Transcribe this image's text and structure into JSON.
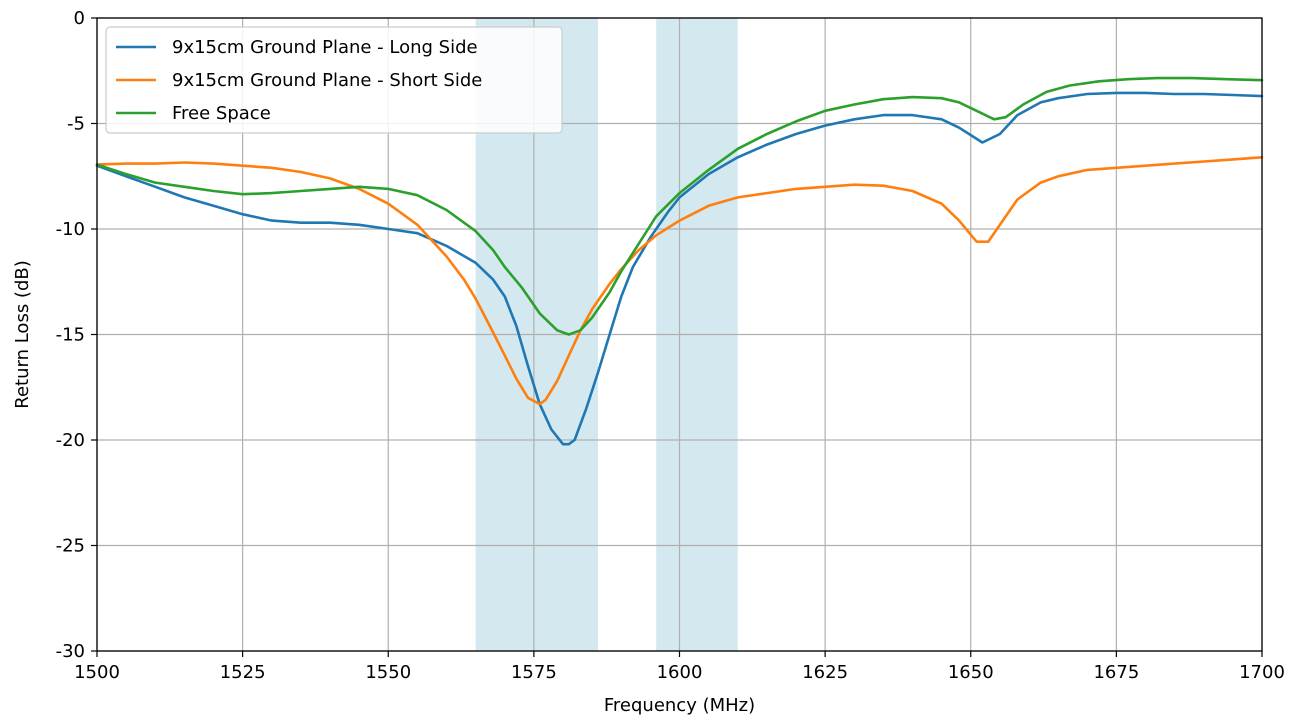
{
  "chart_data": {
    "type": "line",
    "title": "",
    "xlabel": "Frequency (MHz)",
    "ylabel": "Return Loss (dB)",
    "xlim": [
      1500,
      1700
    ],
    "ylim": [
      -30,
      0
    ],
    "x_ticks": [
      1500,
      1525,
      1550,
      1575,
      1600,
      1625,
      1650,
      1675,
      1700
    ],
    "y_ticks": [
      0,
      -5,
      -10,
      -15,
      -20,
      -25,
      -30
    ],
    "grid": true,
    "legend_position": "top-left",
    "shaded_bands": [
      {
        "x_start": 1565,
        "x_end": 1586,
        "color": "#d3e8ef"
      },
      {
        "x_start": 1596,
        "x_end": 1610,
        "color": "#d3e8ef"
      }
    ],
    "series": [
      {
        "name": "9x15cm Ground Plane - Long Side",
        "color": "#1f77b4",
        "points": [
          [
            1500,
            -7.0
          ],
          [
            1505,
            -7.5
          ],
          [
            1510,
            -8.0
          ],
          [
            1515,
            -8.5
          ],
          [
            1520,
            -8.9
          ],
          [
            1525,
            -9.3
          ],
          [
            1530,
            -9.6
          ],
          [
            1535,
            -9.7
          ],
          [
            1540,
            -9.7
          ],
          [
            1545,
            -9.8
          ],
          [
            1550,
            -10.0
          ],
          [
            1555,
            -10.2
          ],
          [
            1560,
            -10.8
          ],
          [
            1565,
            -11.6
          ],
          [
            1568,
            -12.4
          ],
          [
            1570,
            -13.2
          ],
          [
            1572,
            -14.6
          ],
          [
            1574,
            -16.5
          ],
          [
            1576,
            -18.3
          ],
          [
            1578,
            -19.5
          ],
          [
            1580,
            -20.2
          ],
          [
            1581,
            -20.2
          ],
          [
            1582,
            -20.0
          ],
          [
            1584,
            -18.5
          ],
          [
            1586,
            -16.8
          ],
          [
            1588,
            -15.0
          ],
          [
            1590,
            -13.2
          ],
          [
            1592,
            -11.8
          ],
          [
            1595,
            -10.4
          ],
          [
            1598,
            -9.2
          ],
          [
            1600,
            -8.5
          ],
          [
            1605,
            -7.4
          ],
          [
            1610,
            -6.6
          ],
          [
            1615,
            -6.0
          ],
          [
            1620,
            -5.5
          ],
          [
            1625,
            -5.1
          ],
          [
            1630,
            -4.8
          ],
          [
            1635,
            -4.6
          ],
          [
            1640,
            -4.6
          ],
          [
            1645,
            -4.8
          ],
          [
            1648,
            -5.2
          ],
          [
            1652,
            -5.9
          ],
          [
            1655,
            -5.5
          ],
          [
            1658,
            -4.6
          ],
          [
            1662,
            -4.0
          ],
          [
            1665,
            -3.8
          ],
          [
            1670,
            -3.6
          ],
          [
            1675,
            -3.55
          ],
          [
            1680,
            -3.55
          ],
          [
            1685,
            -3.6
          ],
          [
            1690,
            -3.6
          ],
          [
            1695,
            -3.65
          ],
          [
            1700,
            -3.7
          ]
        ]
      },
      {
        "name": "9x15cm Ground Plane - Short Side",
        "color": "#ff7f0e",
        "points": [
          [
            1500,
            -6.95
          ],
          [
            1505,
            -6.9
          ],
          [
            1510,
            -6.9
          ],
          [
            1515,
            -6.85
          ],
          [
            1520,
            -6.9
          ],
          [
            1525,
            -7.0
          ],
          [
            1530,
            -7.1
          ],
          [
            1535,
            -7.3
          ],
          [
            1540,
            -7.6
          ],
          [
            1545,
            -8.1
          ],
          [
            1550,
            -8.8
          ],
          [
            1555,
            -9.8
          ],
          [
            1560,
            -11.3
          ],
          [
            1563,
            -12.4
          ],
          [
            1565,
            -13.3
          ],
          [
            1568,
            -14.9
          ],
          [
            1570,
            -16.0
          ],
          [
            1572,
            -17.1
          ],
          [
            1574,
            -18.0
          ],
          [
            1576,
            -18.3
          ],
          [
            1577,
            -18.1
          ],
          [
            1579,
            -17.2
          ],
          [
            1581,
            -16.0
          ],
          [
            1583,
            -14.8
          ],
          [
            1585,
            -13.8
          ],
          [
            1588,
            -12.6
          ],
          [
            1590,
            -11.9
          ],
          [
            1593,
            -11.0
          ],
          [
            1596,
            -10.3
          ],
          [
            1600,
            -9.6
          ],
          [
            1605,
            -8.9
          ],
          [
            1610,
            -8.5
          ],
          [
            1615,
            -8.3
          ],
          [
            1620,
            -8.1
          ],
          [
            1625,
            -8.0
          ],
          [
            1630,
            -7.9
          ],
          [
            1635,
            -7.95
          ],
          [
            1640,
            -8.2
          ],
          [
            1645,
            -8.8
          ],
          [
            1648,
            -9.6
          ],
          [
            1651,
            -10.6
          ],
          [
            1653,
            -10.6
          ],
          [
            1655,
            -9.8
          ],
          [
            1658,
            -8.6
          ],
          [
            1662,
            -7.8
          ],
          [
            1665,
            -7.5
          ],
          [
            1670,
            -7.2
          ],
          [
            1675,
            -7.1
          ],
          [
            1680,
            -7.0
          ],
          [
            1685,
            -6.9
          ],
          [
            1690,
            -6.8
          ],
          [
            1695,
            -6.7
          ],
          [
            1700,
            -6.6
          ]
        ]
      },
      {
        "name": "Free Space",
        "color": "#2ca02c",
        "points": [
          [
            1500,
            -6.95
          ],
          [
            1505,
            -7.4
          ],
          [
            1510,
            -7.8
          ],
          [
            1515,
            -8.0
          ],
          [
            1520,
            -8.2
          ],
          [
            1525,
            -8.35
          ],
          [
            1530,
            -8.3
          ],
          [
            1535,
            -8.2
          ],
          [
            1540,
            -8.1
          ],
          [
            1545,
            -8.0
          ],
          [
            1550,
            -8.1
          ],
          [
            1555,
            -8.4
          ],
          [
            1560,
            -9.1
          ],
          [
            1565,
            -10.1
          ],
          [
            1568,
            -11.0
          ],
          [
            1570,
            -11.8
          ],
          [
            1573,
            -12.8
          ],
          [
            1576,
            -14.0
          ],
          [
            1579,
            -14.8
          ],
          [
            1581,
            -15.0
          ],
          [
            1583,
            -14.8
          ],
          [
            1585,
            -14.2
          ],
          [
            1588,
            -13.0
          ],
          [
            1590,
            -12.0
          ],
          [
            1593,
            -10.7
          ],
          [
            1596,
            -9.4
          ],
          [
            1600,
            -8.3
          ],
          [
            1605,
            -7.2
          ],
          [
            1610,
            -6.2
          ],
          [
            1615,
            -5.5
          ],
          [
            1620,
            -4.9
          ],
          [
            1625,
            -4.4
          ],
          [
            1630,
            -4.1
          ],
          [
            1635,
            -3.85
          ],
          [
            1640,
            -3.75
          ],
          [
            1645,
            -3.8
          ],
          [
            1648,
            -4.0
          ],
          [
            1651,
            -4.4
          ],
          [
            1654,
            -4.8
          ],
          [
            1656,
            -4.7
          ],
          [
            1659,
            -4.1
          ],
          [
            1663,
            -3.5
          ],
          [
            1667,
            -3.2
          ],
          [
            1672,
            -3.0
          ],
          [
            1677,
            -2.9
          ],
          [
            1682,
            -2.85
          ],
          [
            1688,
            -2.85
          ],
          [
            1694,
            -2.9
          ],
          [
            1700,
            -2.95
          ]
        ]
      }
    ]
  }
}
